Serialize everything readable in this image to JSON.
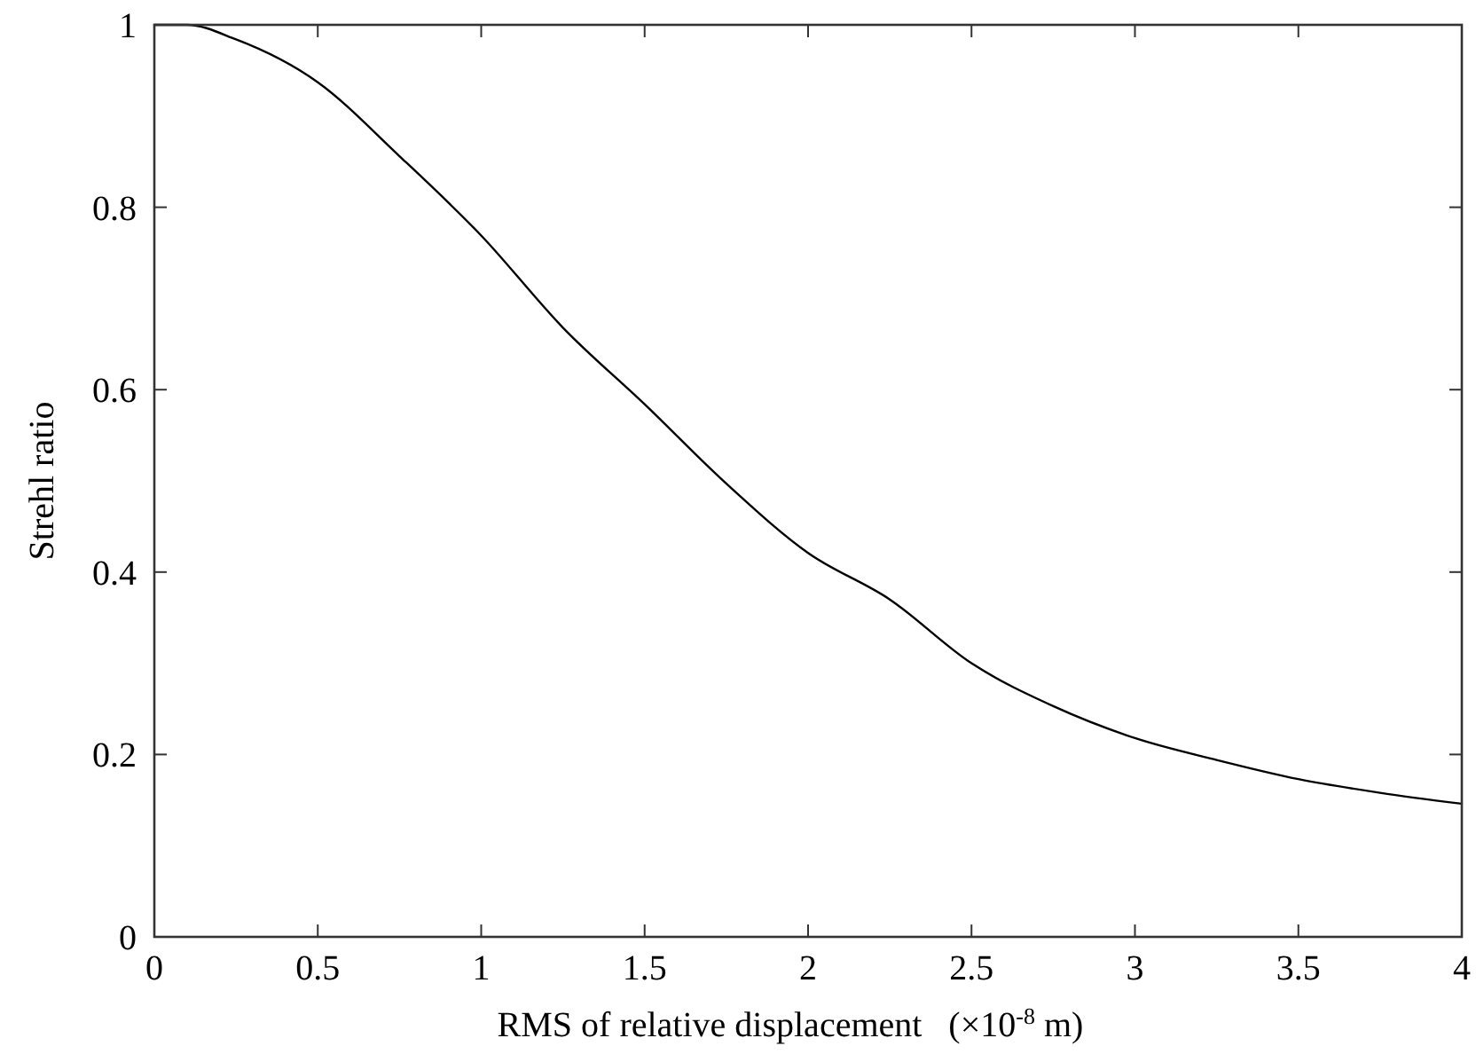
{
  "chart_data": {
    "type": "line",
    "xlabel": "RMS of relative displacement   (×10$^{-8}$ m)",
    "ylabel": "Strehl ratio",
    "x": [
      0,
      0.1,
      0.25,
      0.5,
      0.75,
      1,
      1.25,
      1.5,
      1.75,
      2,
      2.25,
      2.5,
      2.75,
      3,
      3.25,
      3.5,
      3.75,
      4
    ],
    "series": [
      {
        "color": "#000000",
        "values": [
          1,
          1,
          0.984,
          0.937,
          0.856,
          0.769,
          0.668,
          0.584,
          0.497,
          0.421,
          0.37,
          0.3,
          0.253,
          0.218,
          0.194,
          0.173,
          0.158,
          0.146
        ]
      }
    ],
    "xlim": [
      0,
      4
    ],
    "xticks": [
      0,
      0.5,
      1,
      1.5,
      2,
      2.5,
      3,
      3.5,
      4
    ],
    "ylim": [
      0,
      1
    ],
    "yticks": [
      0,
      0.2,
      0.4,
      0.6,
      0.8,
      1
    ],
    "grid": false,
    "marker": "none",
    "line_style": "solid"
  }
}
